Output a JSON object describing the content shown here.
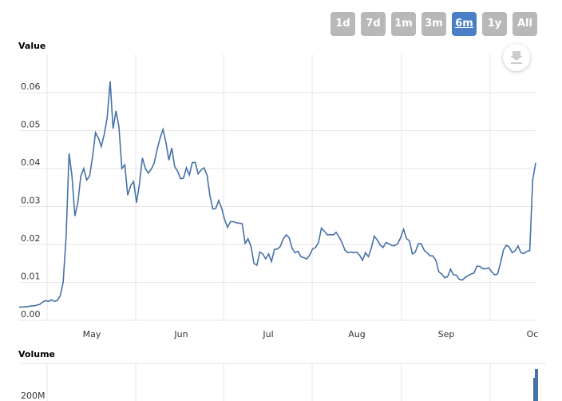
{
  "range_selector": {
    "buttons": [
      "1d",
      "7d",
      "1m",
      "3m",
      "6m",
      "1y",
      "All"
    ],
    "active": "6m"
  },
  "export_icon": "download-icon",
  "colors": {
    "line": "#4572a7",
    "active_button": "#4a7fc6",
    "button": "#b8b8b8"
  },
  "chart_data": [
    {
      "type": "line",
      "title": "Value",
      "xlabel": "",
      "ylabel": "Value",
      "x_tick_labels": [
        "May",
        "Jun",
        "Jul",
        "Aug",
        "Sep",
        "Oc"
      ],
      "y_tick_labels": [
        "0.00",
        "0.01",
        "0.02",
        "0.03",
        "0.04",
        "0.05",
        "0.06"
      ],
      "ylim": [
        0,
        0.07
      ],
      "grid": true,
      "series": [
        {
          "values": [
            0.0035,
            0.0035,
            0.0036,
            0.0036,
            0.0038,
            0.0038,
            0.004,
            0.0042,
            0.0048,
            0.0052,
            0.005,
            0.0054,
            0.005,
            0.0052,
            0.0065,
            0.01,
            0.022,
            0.044,
            0.038,
            0.0275,
            0.031,
            0.038,
            0.04,
            0.037,
            0.038,
            0.043,
            0.0495,
            0.048,
            0.0458,
            0.049,
            0.0535,
            0.063,
            0.0505,
            0.0552,
            0.051,
            0.04,
            0.041,
            0.033,
            0.0355,
            0.0366,
            0.031,
            0.036,
            0.0428,
            0.04,
            0.0388,
            0.0398,
            0.0414,
            0.045,
            0.048,
            0.0503,
            0.047,
            0.0422,
            0.0454,
            0.0405,
            0.0393,
            0.0373,
            0.0375,
            0.0402,
            0.0383,
            0.0416,
            0.0416,
            0.0386,
            0.0396,
            0.0402,
            0.0383,
            0.033,
            0.0293,
            0.0295,
            0.0316,
            0.0295,
            0.0266,
            0.0245,
            0.026,
            0.026,
            0.0257,
            0.0256,
            0.0255,
            0.0203,
            0.0215,
            0.0195,
            0.015,
            0.0145,
            0.018,
            0.0175,
            0.0162,
            0.0175,
            0.0155,
            0.0187,
            0.0188,
            0.0195,
            0.0215,
            0.0225,
            0.0218,
            0.019,
            0.0178,
            0.0182,
            0.0168,
            0.0165,
            0.0162,
            0.0172,
            0.0188,
            0.0192,
            0.0205,
            0.0243,
            0.0235,
            0.0225,
            0.0226,
            0.0225,
            0.0232,
            0.022,
            0.0205,
            0.0185,
            0.0178,
            0.018,
            0.0178,
            0.018,
            0.0172,
            0.0158,
            0.0178,
            0.0168,
            0.019,
            0.0222,
            0.0212,
            0.0198,
            0.0192,
            0.0205,
            0.0202,
            0.0197,
            0.0197,
            0.0202,
            0.0218,
            0.024,
            0.0215,
            0.021,
            0.0175,
            0.018,
            0.0202,
            0.0202,
            0.0185,
            0.0178,
            0.017,
            0.017,
            0.0158,
            0.0128,
            0.0122,
            0.0112,
            0.0115,
            0.0135,
            0.012,
            0.0119,
            0.0108,
            0.0106,
            0.0113,
            0.0118,
            0.0122,
            0.0125,
            0.0143,
            0.0142,
            0.0136,
            0.0136,
            0.0138,
            0.0128,
            0.012,
            0.0122,
            0.015,
            0.0185,
            0.0198,
            0.0193,
            0.0178,
            0.0183,
            0.0196,
            0.0178,
            0.0176,
            0.0182,
            0.0184,
            0.037,
            0.0415
          ]
        }
      ]
    },
    {
      "type": "bar",
      "title": "Volume",
      "y_tick_labels": [
        "200M"
      ]
    }
  ]
}
